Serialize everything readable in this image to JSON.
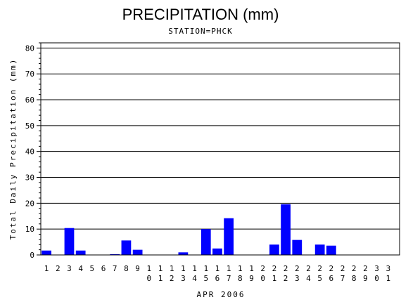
{
  "chart_data": {
    "type": "bar",
    "title": "PRECIPITATION (mm)",
    "subtitle": "STATION=PHCK",
    "xlabel": "APR 2006",
    "ylabel": "Total Daily Precipitation (mm)",
    "ylim": [
      0,
      82
    ],
    "yticks": [
      0,
      10,
      20,
      30,
      40,
      50,
      60,
      70,
      80
    ],
    "grid": true,
    "bar_color": "#0000ff",
    "categories": [
      "1",
      "2",
      "3",
      "4",
      "5",
      "6",
      "7",
      "8",
      "9",
      "10",
      "11",
      "12",
      "13",
      "14",
      "15",
      "16",
      "17",
      "18",
      "19",
      "20",
      "21",
      "22",
      "23",
      "24",
      "25",
      "26",
      "27",
      "28",
      "29",
      "30",
      "31"
    ],
    "values": [
      1.7,
      0,
      10.4,
      1.7,
      0,
      0,
      0.3,
      5.6,
      2.0,
      0,
      0,
      0,
      1.0,
      0,
      10.0,
      2.5,
      14.2,
      0,
      0,
      0,
      4.0,
      19.6,
      5.8,
      0,
      4.0,
      3.6,
      0,
      0,
      0,
      0,
      0
    ]
  }
}
